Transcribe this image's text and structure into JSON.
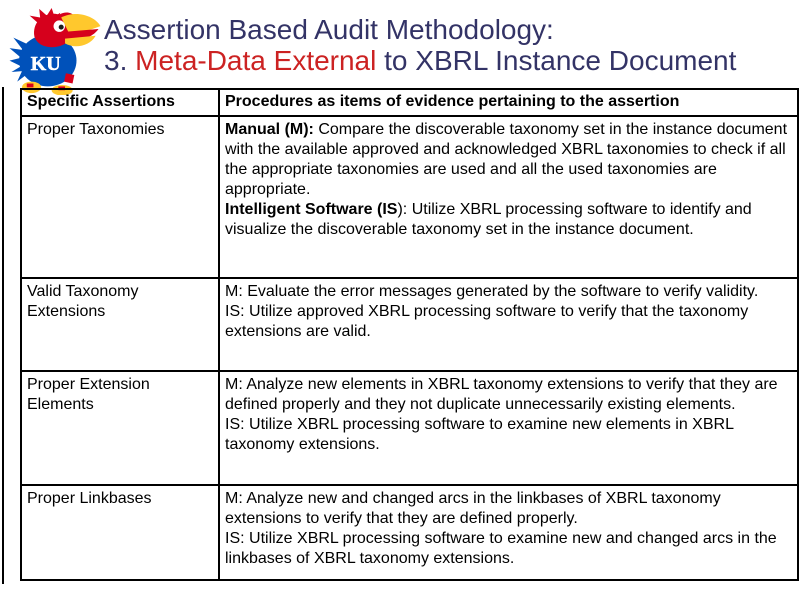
{
  "slide": {
    "title_line1": "Assertion Based Audit Methodology:",
    "title_line2_parts": [
      {
        "text": "3. ",
        "accent": false
      },
      {
        "text": "Meta-Data External",
        "accent": true
      },
      {
        "text": " to XBRL Instance Document",
        "accent": false
      }
    ]
  },
  "logo": {
    "name": "ku-jayhawk-logo",
    "monogram": "KU"
  },
  "colors": {
    "title_navy": "#333366",
    "accent_red": "#CC2222",
    "table_border": "#000000",
    "ku_blue": "#0051BA",
    "ku_red": "#D6001C",
    "ku_yellow": "#FFC82D"
  },
  "table": {
    "col_headers": [
      "Specific Assertions",
      "Procedures as items of evidence pertaining to the assertion"
    ],
    "rows": [
      {
        "assertion": "Proper Taxonomies",
        "procedures": [
          [
            {
              "text": "Manual (M):",
              "bold": true
            },
            {
              "text": " Compare the discoverable taxonomy set in the instance document with the available approved and acknowledged XBRL taxonomies to check if all the appropriate taxonomies are used and all the used taxonomies are appropriate.",
              "bold": false
            }
          ],
          [
            {
              "text": "Intelligent Software (IS",
              "bold": true
            },
            {
              "text": "): Utilize XBRL processing software to identify and visualize the discoverable taxonomy set in the instance document.",
              "bold": false
            }
          ]
        ]
      },
      {
        "assertion": "Valid Taxonomy Extensions",
        "procedures": [
          [
            {
              "text": "M: Evaluate the error messages generated by the software to verify validity.",
              "bold": false
            }
          ],
          [
            {
              "text": "IS: Utilize approved XBRL processing software to verify that the taxonomy extensions are valid.",
              "bold": false
            }
          ]
        ]
      },
      {
        "assertion": "Proper Extension Elements",
        "procedures": [
          [
            {
              "text": "M: Analyze new elements in XBRL taxonomy extensions to verify that they are defined properly and they not duplicate unnecessarily existing elements.",
              "bold": false
            }
          ],
          [
            {
              "text": "IS: Utilize XBRL processing software to examine new elements in XBRL taxonomy extensions.",
              "bold": false
            }
          ]
        ]
      },
      {
        "assertion": "Proper Linkbases",
        "procedures": [
          [
            {
              "text": "M: Analyze new and changed arcs in the linkbases of XBRL taxonomy extensions to verify that they are defined properly.",
              "bold": false
            }
          ],
          [
            {
              "text": "IS: Utilize XBRL processing software to examine new and changed arcs in the linkbases of XBRL taxonomy extensions.",
              "bold": false
            }
          ]
        ]
      }
    ]
  }
}
